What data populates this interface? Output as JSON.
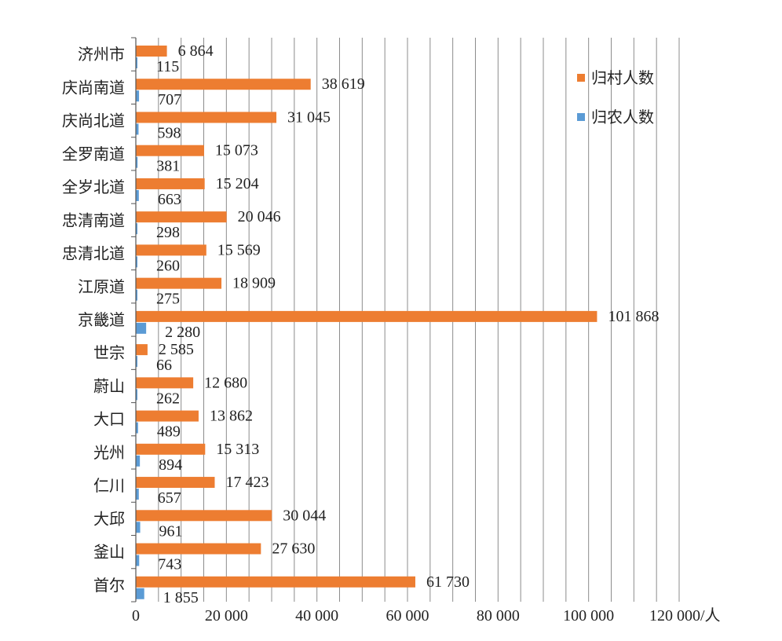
{
  "chart_data": {
    "type": "bar",
    "orientation": "horizontal",
    "categories": [
      "济州市",
      "庆尚南道",
      "庆尚北道",
      "全罗南道",
      "全岁北道",
      "忠清南道",
      "忠清北道",
      "江原道",
      "京畿道",
      "世宗",
      "蔚山",
      "大口",
      "光州",
      "仁川",
      "大邱",
      "釜山",
      "首尔"
    ],
    "series": [
      {
        "name": "归村人数",
        "color": "#ED7D31",
        "values": [
          6864,
          38619,
          31045,
          15073,
          15204,
          20046,
          15569,
          18909,
          101868,
          2585,
          12680,
          13862,
          15313,
          17423,
          30044,
          27630,
          61730
        ],
        "labels": [
          "6 864",
          "38 619",
          "31 045",
          "15 073",
          "15 204",
          "20 046",
          "15 569",
          "18 909",
          "101 868",
          "2 585",
          "12 680",
          "13 862",
          "15 313",
          "17 423",
          "30 044",
          "27 630",
          "61 730"
        ]
      },
      {
        "name": "归农人数",
        "color": "#5B9BD5",
        "values": [
          115,
          707,
          598,
          381,
          663,
          298,
          260,
          275,
          2280,
          66,
          262,
          489,
          894,
          657,
          961,
          743,
          1855
        ],
        "labels": [
          "115",
          "707",
          "598",
          "381",
          "663",
          "298",
          "260",
          "275",
          "2 280",
          "66",
          "262",
          "489",
          "894",
          "657",
          "961",
          "743",
          "1 855"
        ]
      }
    ],
    "xlim": [
      0,
      120000
    ],
    "xticks": [
      0,
      20000,
      40000,
      60000,
      80000,
      100000,
      120000
    ],
    "xtick_labels": [
      "0",
      "20 000",
      "40 000",
      "60 000",
      "80 000",
      "100 000",
      "120 000/人"
    ],
    "grid": true,
    "legend_position": "top-right"
  }
}
